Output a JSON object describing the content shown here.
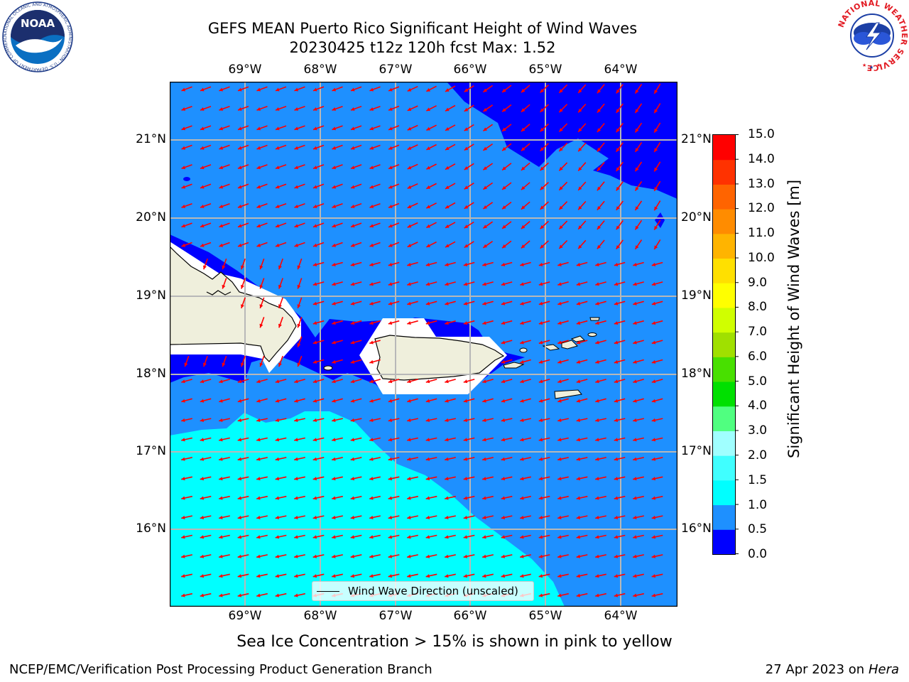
{
  "header": {
    "title_line1": "GEFS MEAN Puerto Rico Significant Height of Wind Waves",
    "title_line2": "20230425 t12z 120h fcst   Max: 1.52"
  },
  "logos": {
    "left": {
      "text": "NOAA",
      "ring_text": "NATIONAL OCEANIC AND ATMOSPHERIC ADMINISTRATION · U.S. DEPARTMENT OF COMMERCE"
    },
    "right": {
      "ring_text": "NATIONAL WEATHER SERVICE"
    }
  },
  "map": {
    "lon_labels": [
      "69°W",
      "68°W",
      "67°W",
      "66°W",
      "65°W",
      "64°W"
    ],
    "lat_labels": [
      "21°N",
      "20°N",
      "19°N",
      "18°N",
      "17°N",
      "16°N"
    ],
    "extent": {
      "lon_min": -70.0,
      "lon_max": -63.25,
      "lat_min": 15.0,
      "lat_max": 21.75
    },
    "legend_label": "Wind Wave Direction (unscaled)",
    "vector_color": "#ff0000",
    "land_color": "#efefdc"
  },
  "colorbar": {
    "label": "Significant Height of Wind Waves [m]",
    "ticks": [
      "0.0",
      "0.5",
      "1.0",
      "1.5",
      "2.0",
      "3.0",
      "4.0",
      "5.0",
      "6.0",
      "7.0",
      "8.0",
      "9.0",
      "10.0",
      "11.0",
      "12.0",
      "13.0",
      "14.0",
      "15.0"
    ],
    "colors": [
      "#0000ff",
      "#1e90ff",
      "#00ffff",
      "#40ffff",
      "#a0ffff",
      "#50ff80",
      "#00e000",
      "#48e000",
      "#a0e000",
      "#d0ff00",
      "#ffff00",
      "#ffe000",
      "#ffb400",
      "#ff8c00",
      "#ff6400",
      "#ff3200",
      "#ff0000"
    ]
  },
  "footer": {
    "note": "Sea Ice Concentration > 15% is shown in pink to yellow",
    "left": "NCEP/EMC/Verification Post Processing Product Generation Branch",
    "right_prefix": "27 Apr 2023 on ",
    "right_host": "Hera"
  }
}
